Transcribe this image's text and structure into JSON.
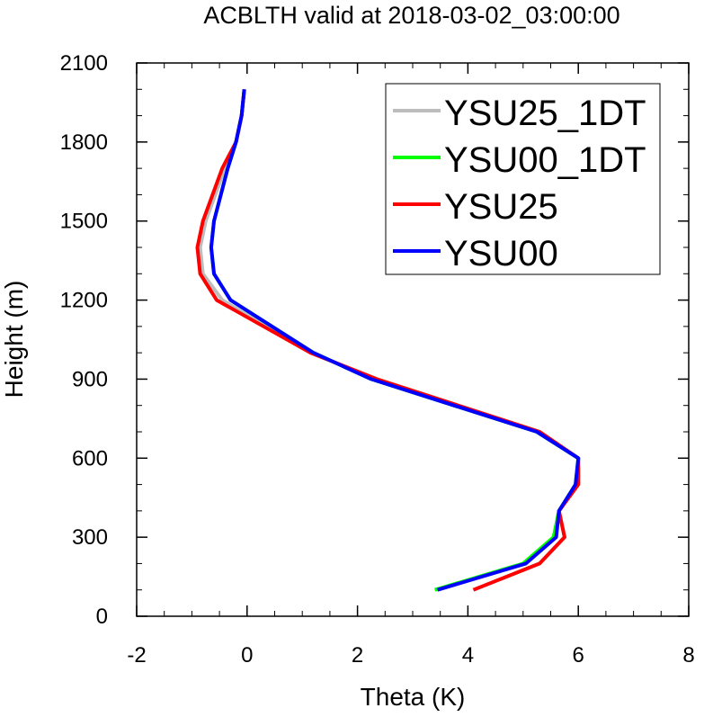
{
  "chart_data": {
    "type": "line",
    "title": "ACBLTH valid at 2018-03-02_03:00:00",
    "xlabel": "Theta (K)",
    "ylabel": "Height (m)",
    "xlim": [
      -2,
      8
    ],
    "ylim": [
      0,
      2100
    ],
    "xticks": [
      -2,
      0,
      2,
      4,
      6,
      8
    ],
    "yticks": [
      0,
      300,
      600,
      900,
      1200,
      1500,
      1800,
      2100
    ],
    "x_minor_step": 0.5,
    "y_minor_step": 100,
    "grid": false,
    "legend_position": "top-right",
    "series": [
      {
        "name": "YSU25_1DT",
        "color": "#bdbdbd",
        "x": [
          4.1,
          5.3,
          5.75,
          5.65,
          6.0,
          6.0,
          5.3,
          2.35,
          1.15,
          -0.45,
          -0.8,
          -0.85,
          -0.75,
          -0.4,
          -0.2,
          -0.1,
          -0.05
        ],
        "y": [
          100,
          200,
          300,
          400,
          500,
          600,
          700,
          900,
          1000,
          1200,
          1300,
          1400,
          1500,
          1700,
          1800,
          1900,
          2000
        ]
      },
      {
        "name": "YSU00_1DT",
        "color": "#00ff00",
        "x": [
          3.4,
          5.0,
          5.55,
          5.65,
          5.95,
          6.0,
          5.25,
          2.25,
          1.2,
          -0.3,
          -0.6,
          -0.65,
          -0.6,
          -0.35,
          -0.2,
          -0.1,
          -0.05
        ],
        "y": [
          100,
          200,
          300,
          400,
          500,
          600,
          700,
          900,
          1000,
          1200,
          1300,
          1400,
          1500,
          1700,
          1800,
          1900,
          2000
        ]
      },
      {
        "name": "YSU25",
        "color": "#ff0000",
        "x": [
          4.1,
          5.3,
          5.75,
          5.65,
          6.0,
          6.0,
          5.3,
          2.35,
          1.15,
          -0.55,
          -0.85,
          -0.9,
          -0.8,
          -0.45,
          -0.2,
          -0.1,
          -0.05
        ],
        "y": [
          100,
          200,
          300,
          400,
          500,
          600,
          700,
          900,
          1000,
          1200,
          1300,
          1400,
          1500,
          1700,
          1800,
          1900,
          2000
        ]
      },
      {
        "name": "YSU00",
        "color": "#0000ff",
        "x": [
          3.45,
          5.05,
          5.6,
          5.65,
          5.95,
          6.0,
          5.25,
          2.25,
          1.2,
          -0.3,
          -0.6,
          -0.65,
          -0.6,
          -0.35,
          -0.2,
          -0.1,
          -0.05
        ],
        "y": [
          100,
          200,
          300,
          400,
          500,
          600,
          700,
          900,
          1000,
          1200,
          1300,
          1400,
          1500,
          1700,
          1800,
          1900,
          2000
        ]
      }
    ]
  }
}
